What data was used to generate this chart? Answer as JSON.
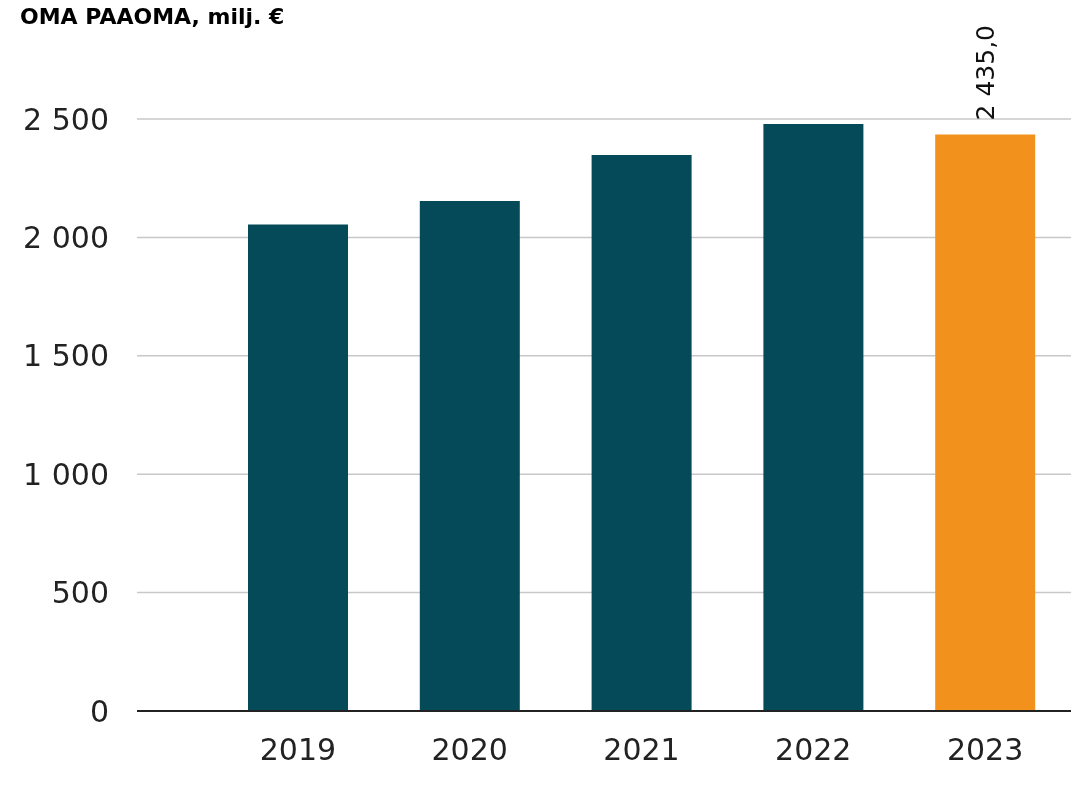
{
  "chart_data": {
    "type": "bar",
    "title": "OMA PAAOMA, milj. €",
    "categories": [
      "2019",
      "2020",
      "2021",
      "2022",
      "2023"
    ],
    "values": [
      2055,
      2154,
      2348,
      2479,
      2435.0
    ],
    "colors": [
      "#044a58",
      "#044a58",
      "#044a58",
      "#044a58",
      "#f2921c"
    ],
    "value_labels": [
      null,
      null,
      null,
      null,
      "2 435,0"
    ],
    "ylim": [
      0,
      2500
    ],
    "yticks": [
      0,
      500,
      {
        "value": 1000,
        "label": "1 000"
      },
      {
        "value": 1500,
        "label": "1 500"
      },
      {
        "value": 2000,
        "label": "2 000"
      },
      {
        "value": 2500,
        "label": "2 500"
      }
    ],
    "grid": "y"
  }
}
